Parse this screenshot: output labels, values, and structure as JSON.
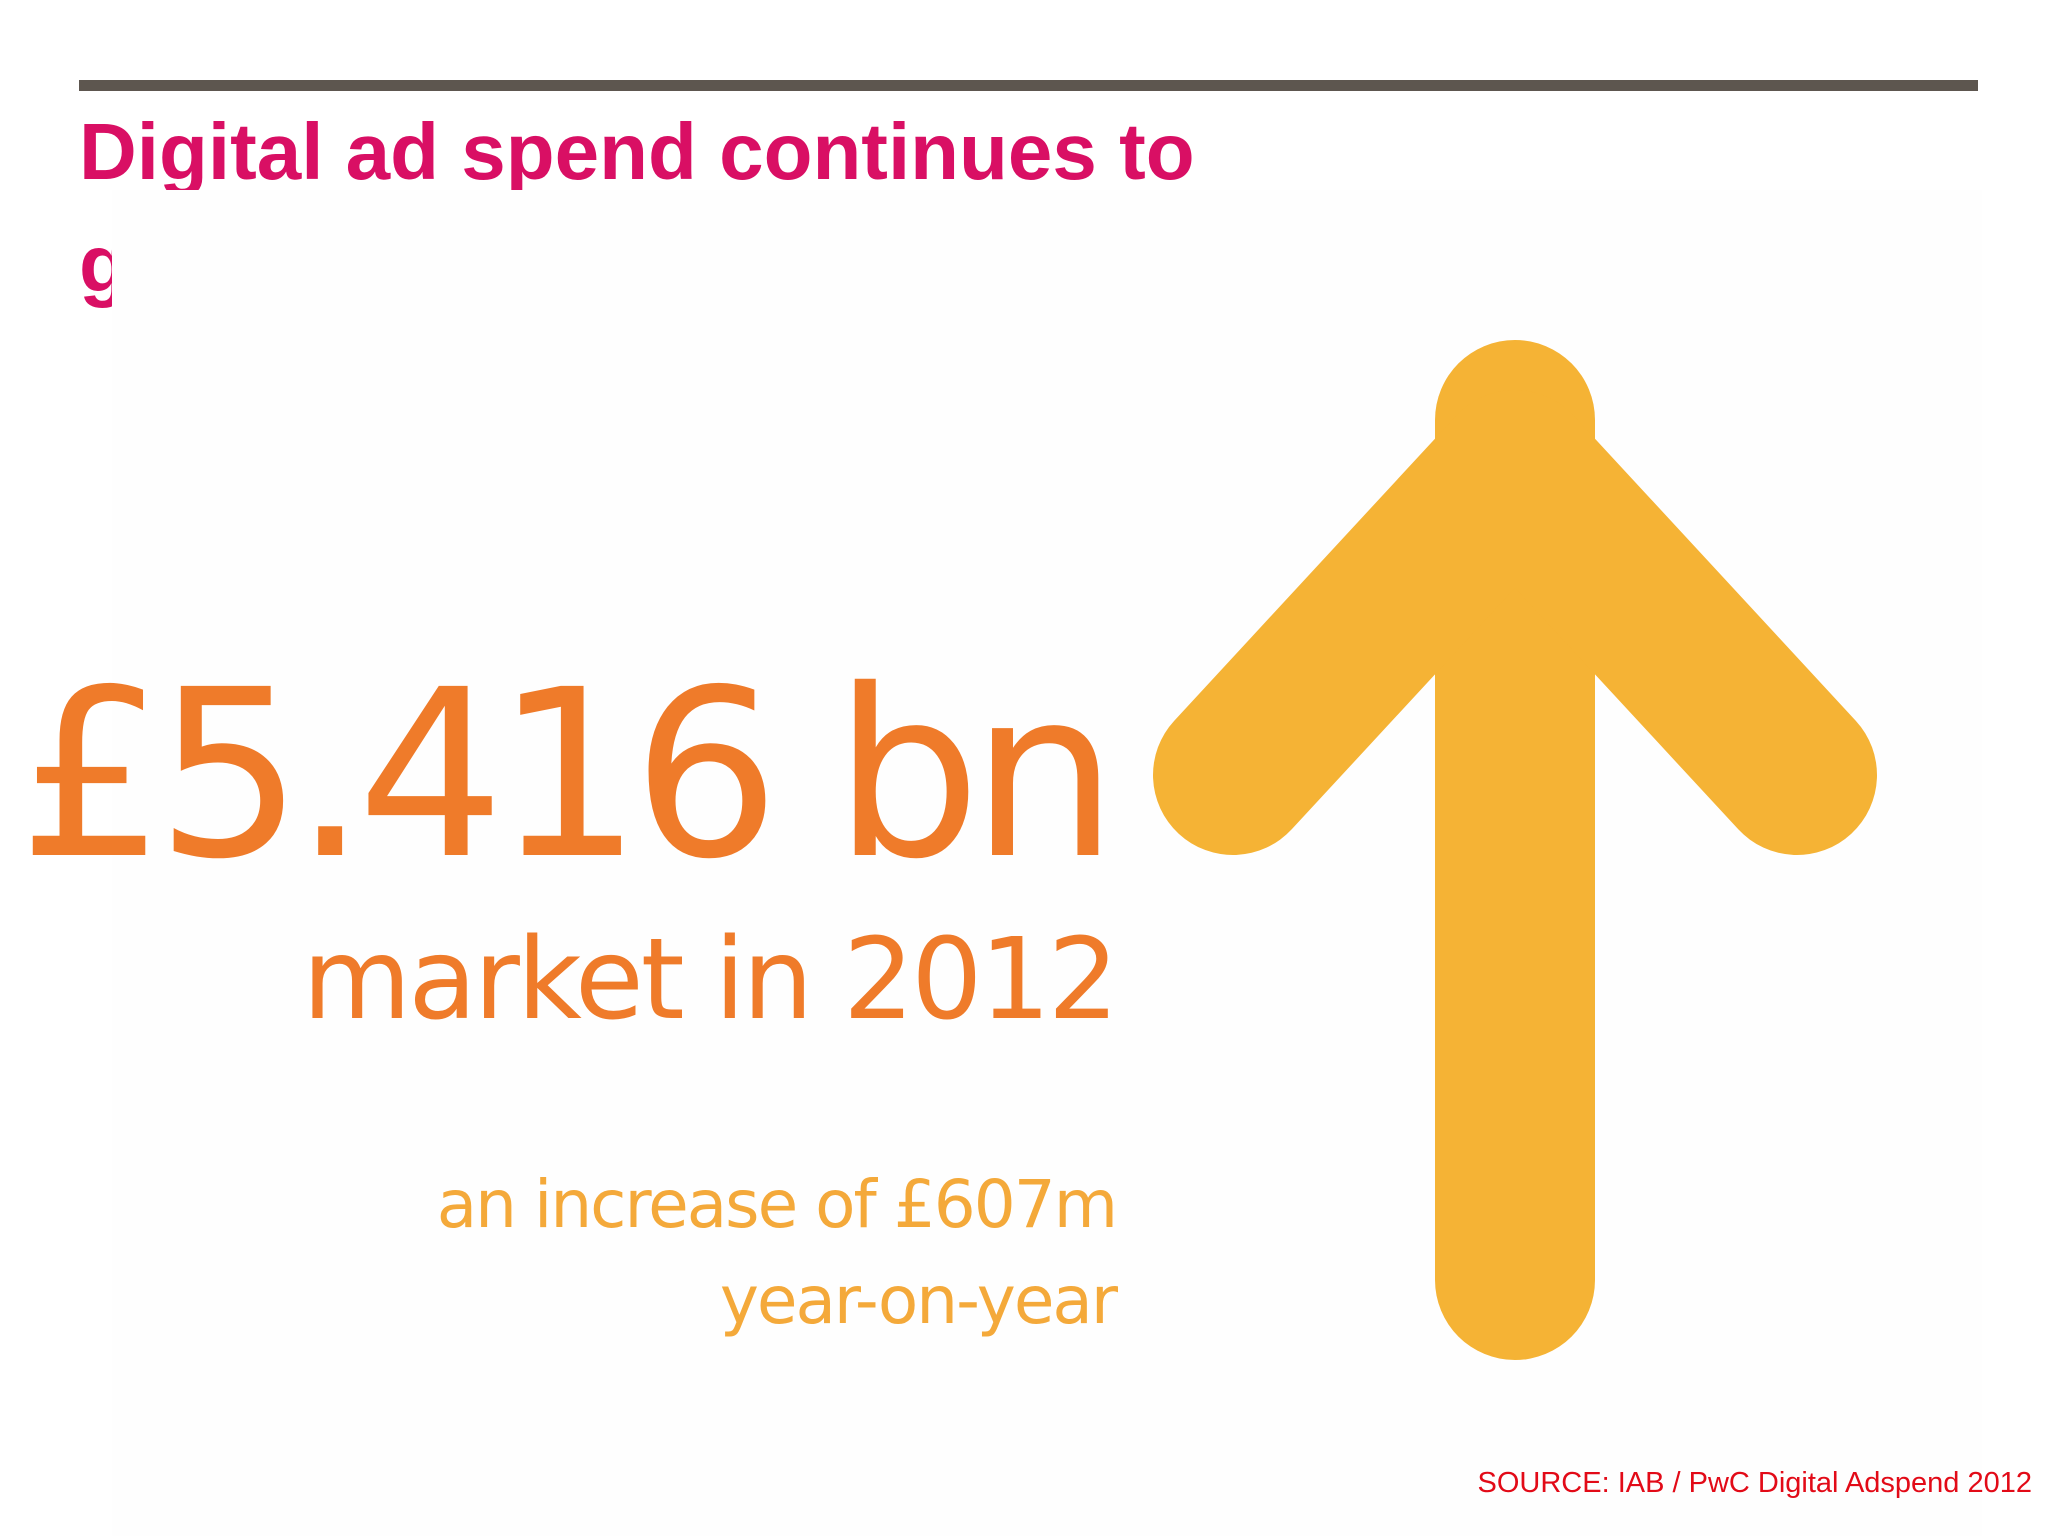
{
  "title": "Digital ad spend continues to grow",
  "infographic": {
    "headline_figure": "£5.416 bn",
    "subline": "market in 2012",
    "increase_line1": "an increase of £607m",
    "increase_line2": "year-on-year",
    "arrow_icon": "up-arrow-icon"
  },
  "source": "SOURCE: IAB / PwC Digital Adspend 2012",
  "colors": {
    "title": "#d90f64",
    "rule": "#5d564f",
    "figure": "#ef7b2a",
    "increase_text": "#f4a93a",
    "arrow": "#f5b335",
    "source": "#e20a17"
  }
}
